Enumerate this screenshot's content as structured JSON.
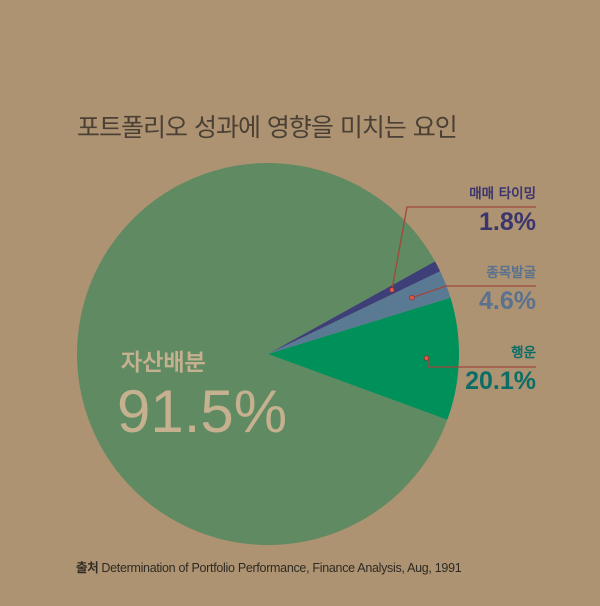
{
  "colors": {
    "background": "#ad9371",
    "allocation": "#5f8a62",
    "timing": "#3d3f78",
    "selection": "#5a7a94",
    "luck": "#00905a",
    "leader": "#a0473c"
  },
  "chart_data": {
    "type": "pie",
    "title": "포트폴리오 성과에 영향을 미치는 요인",
    "slices": [
      {
        "name": "자산배분",
        "value": 91.5,
        "value_label": "91.5%",
        "color": "#5f8a62"
      },
      {
        "name": "매매 타이밍",
        "value": 1.8,
        "value_label": "1.8%",
        "color": "#3d3f78"
      },
      {
        "name": "종목발굴",
        "value": 4.6,
        "value_label": "4.6%",
        "color": "#5a7a94"
      },
      {
        "name": "행운",
        "value": 20.1,
        "value_label": "20.1%",
        "color": "#00905a"
      }
    ]
  },
  "source": {
    "prefix": "출처",
    "text": "Determination of Portfolio Performance, Finance Analysis, Aug, 1991"
  }
}
